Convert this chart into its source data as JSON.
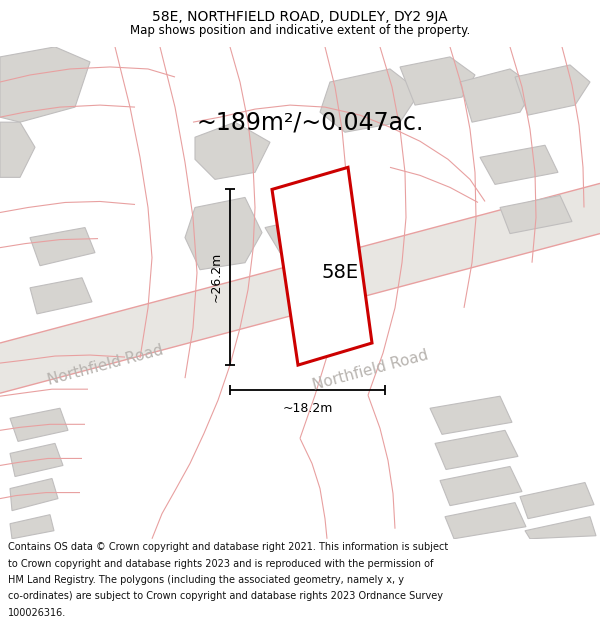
{
  "title": "58E, NORTHFIELD ROAD, DUDLEY, DY2 9JA",
  "subtitle": "Map shows position and indicative extent of the property.",
  "area_text": "~189m²/~0.047ac.",
  "label_58e": "58E",
  "dim_height": "~26.2m",
  "dim_width": "~18.2m",
  "road_label": "Northfield Road",
  "footer_lines": [
    "Contains OS data © Crown copyright and database right 2021. This information is subject",
    "to Crown copyright and database rights 2023 and is reproduced with the permission of",
    "HM Land Registry. The polygons (including the associated geometry, namely x, y",
    "co-ordinates) are subject to Crown copyright and database rights 2023 Ordnance Survey",
    "100026316."
  ],
  "map_bg": "#f0eeec",
  "building_fill": "#d6d4d0",
  "building_ec": "#c0bebe",
  "road_fill": "#e8e6e2",
  "pink": "#e8a0a0",
  "subject_color": "#cc0000",
  "road_text_color": "#b8b4b0",
  "title_fontsize": 10,
  "subtitle_fontsize": 8.5,
  "area_fontsize": 17,
  "label_fontsize": 14,
  "dim_fontsize": 9,
  "road_fontsize": 11,
  "footer_fontsize": 7
}
